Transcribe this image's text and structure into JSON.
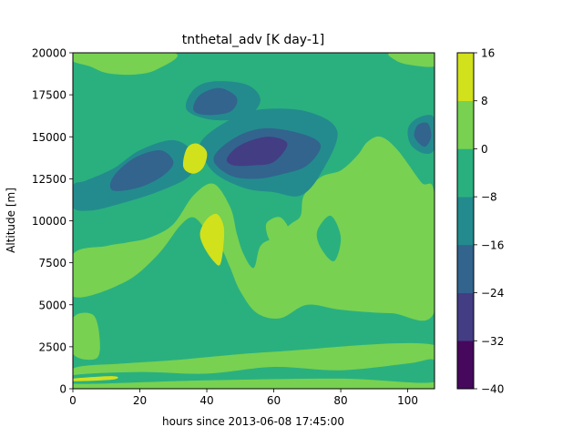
{
  "chart_data": {
    "type": "heatmap",
    "subtype": "filled-contour",
    "title": "tnthetal_adv [K day-1]",
    "xlabel": "hours since 2013-06-08 17:45:00",
    "ylabel": "Altitude [m]",
    "xlim": [
      0,
      108
    ],
    "ylim": [
      0,
      20000
    ],
    "xticks": [
      "0",
      "20",
      "40",
      "60",
      "80",
      "100"
    ],
    "xtick_values": [
      0,
      20,
      40,
      60,
      80,
      100
    ],
    "yticks": [
      "0",
      "2500",
      "5000",
      "7500",
      "10000",
      "12500",
      "15000",
      "17500",
      "20000"
    ],
    "ytick_values": [
      0,
      2500,
      5000,
      7500,
      10000,
      12500,
      15000,
      17500,
      20000
    ],
    "colormap": "viridis",
    "levels": [
      -40,
      -32,
      -24,
      -16,
      -8,
      0,
      8,
      16
    ],
    "colorbar_ticks": [
      "16",
      "8",
      "0",
      "−8",
      "−16",
      "−24",
      "−32",
      "−40"
    ],
    "level_colors": [
      "#46085c",
      "#433d84",
      "#32648e",
      "#238b8d",
      "#2ab07f",
      "#78d151",
      "#d1e11c"
    ],
    "background_band": "-8..0",
    "regions": [
      {
        "band": "0..8",
        "points": [
          [
            0,
            0
          ],
          [
            108,
            0
          ],
          [
            108,
            2600
          ],
          [
            60,
            2200
          ],
          [
            30,
            1700
          ],
          [
            15,
            1500
          ],
          [
            0,
            1200
          ]
        ]
      },
      {
        "band": "-8..0",
        "points": [
          [
            0,
            800
          ],
          [
            20,
            1000
          ],
          [
            40,
            900
          ],
          [
            60,
            1300
          ],
          [
            80,
            1100
          ],
          [
            100,
            1500
          ],
          [
            108,
            1700
          ],
          [
            108,
            400
          ],
          [
            80,
            600
          ],
          [
            40,
            500
          ],
          [
            0,
            300
          ]
        ]
      },
      {
        "band": "8..16",
        "points": [
          [
            0,
            600
          ],
          [
            12,
            750
          ],
          [
            12,
            550
          ],
          [
            0,
            450
          ]
        ]
      },
      {
        "band": "0..8",
        "points": [
          [
            0,
            4200
          ],
          [
            6,
            4400
          ],
          [
            8,
            3000
          ],
          [
            7,
            1800
          ],
          [
            0,
            2100
          ]
        ]
      },
      {
        "band": "0..8",
        "points": [
          [
            0,
            5500
          ],
          [
            15,
            6300
          ],
          [
            25,
            7900
          ],
          [
            32,
            9700
          ],
          [
            36,
            10200
          ],
          [
            40,
            9400
          ],
          [
            44,
            8500
          ],
          [
            47,
            7200
          ],
          [
            50,
            5800
          ],
          [
            55,
            4500
          ],
          [
            62,
            4200
          ],
          [
            70,
            5000
          ],
          [
            80,
            4700
          ],
          [
            95,
            4500
          ],
          [
            108,
            4600
          ],
          [
            108,
            11500
          ],
          [
            104,
            12300
          ],
          [
            97,
            14200
          ],
          [
            92,
            15000
          ],
          [
            88,
            14700
          ],
          [
            85,
            13900
          ],
          [
            80,
            13000
          ],
          [
            74,
            12600
          ],
          [
            69,
            11500
          ],
          [
            68,
            10300
          ],
          [
            65,
            9800
          ],
          [
            60,
            9000
          ],
          [
            56,
            8500
          ],
          [
            54,
            7200
          ],
          [
            51,
            8000
          ],
          [
            49,
            9200
          ],
          [
            47,
            10800
          ],
          [
            42,
            12200
          ],
          [
            36,
            11500
          ],
          [
            30,
            9800
          ],
          [
            23,
            9000
          ],
          [
            16,
            8700
          ],
          [
            10,
            8500
          ],
          [
            0,
            8000
          ]
        ]
      },
      {
        "band": "0..8",
        "points": [
          [
            58,
            9900
          ],
          [
            62,
            10200
          ],
          [
            65,
            9200
          ],
          [
            64,
            7800
          ],
          [
            62,
            7000
          ],
          [
            60,
            8300
          ],
          [
            58,
            9200
          ]
        ]
      },
      {
        "band": "0..8",
        "points": [
          [
            0,
            20000
          ],
          [
            30,
            20000
          ],
          [
            25,
            19000
          ],
          [
            18,
            18700
          ],
          [
            10,
            18800
          ],
          [
            5,
            19200
          ],
          [
            0,
            19500
          ]
        ]
      },
      {
        "band": "0..8",
        "points": [
          [
            95,
            20000
          ],
          [
            108,
            20000
          ],
          [
            108,
            19200
          ],
          [
            100,
            19300
          ],
          [
            96,
            19600
          ]
        ]
      },
      {
        "band": "-8..0",
        "points": [
          [
            73,
            9400
          ],
          [
            77,
            10300
          ],
          [
            80,
            9000
          ],
          [
            78,
            7600
          ],
          [
            74,
            8400
          ]
        ]
      },
      {
        "band": "-16..-8",
        "points": [
          [
            0,
            10800
          ],
          [
            5,
            10600
          ],
          [
            12,
            10900
          ],
          [
            25,
            11700
          ],
          [
            35,
            12700
          ],
          [
            36,
            14000
          ],
          [
            30,
            14800
          ],
          [
            20,
            14200
          ],
          [
            12,
            13100
          ],
          [
            4,
            12400
          ],
          [
            0,
            12100
          ]
        ]
      },
      {
        "band": "-24..-16",
        "points": [
          [
            12,
            11800
          ],
          [
            20,
            12000
          ],
          [
            27,
            12700
          ],
          [
            30,
            13500
          ],
          [
            26,
            14200
          ],
          [
            18,
            13700
          ],
          [
            12,
            12600
          ]
        ]
      },
      {
        "band": "-16..-8",
        "points": [
          [
            38,
            14600
          ],
          [
            45,
            15800
          ],
          [
            55,
            16600
          ],
          [
            70,
            16500
          ],
          [
            79,
            15300
          ],
          [
            74,
            12800
          ],
          [
            68,
            11500
          ],
          [
            60,
            11700
          ],
          [
            52,
            11900
          ],
          [
            44,
            12600
          ],
          [
            40,
            13400
          ]
        ]
      },
      {
        "band": "-24..-16",
        "points": [
          [
            42,
            13700
          ],
          [
            48,
            14900
          ],
          [
            57,
            15500
          ],
          [
            68,
            15200
          ],
          [
            74,
            14500
          ],
          [
            70,
            13300
          ],
          [
            63,
            12800
          ],
          [
            55,
            12500
          ],
          [
            47,
            12700
          ]
        ]
      },
      {
        "band": "-32..-24",
        "points": [
          [
            46,
            13700
          ],
          [
            50,
            14500
          ],
          [
            58,
            15000
          ],
          [
            64,
            14600
          ],
          [
            60,
            13500
          ],
          [
            54,
            13300
          ],
          [
            48,
            13300
          ]
        ]
      },
      {
        "band": "-16..-8",
        "points": [
          [
            34,
            16600
          ],
          [
            36,
            17800
          ],
          [
            42,
            18300
          ],
          [
            52,
            18100
          ],
          [
            56,
            17200
          ],
          [
            52,
            16200
          ],
          [
            42,
            16000
          ]
        ]
      },
      {
        "band": "-24..-16",
        "points": [
          [
            36,
            16600
          ],
          [
            38,
            17500
          ],
          [
            44,
            17900
          ],
          [
            49,
            17300
          ],
          [
            47,
            16500
          ],
          [
            40,
            16300
          ]
        ]
      },
      {
        "band": "-16..-8",
        "points": [
          [
            100,
            15400
          ],
          [
            102,
            16000
          ],
          [
            106,
            16300
          ],
          [
            108,
            16000
          ],
          [
            108,
            14300
          ],
          [
            105,
            14000
          ],
          [
            101,
            14500
          ]
        ]
      },
      {
        "band": "-24..-16",
        "points": [
          [
            102,
            15000
          ],
          [
            103,
            15700
          ],
          [
            106,
            15800
          ],
          [
            107,
            15000
          ],
          [
            105,
            14400
          ]
        ]
      },
      {
        "band": "8..16",
        "points": [
          [
            33,
            13200
          ],
          [
            34,
            14300
          ],
          [
            37,
            14600
          ],
          [
            40,
            14100
          ],
          [
            39,
            13200
          ],
          [
            36,
            12800
          ]
        ]
      },
      {
        "band": "8..16",
        "points": [
          [
            38,
            9300
          ],
          [
            40,
            10100
          ],
          [
            43,
            10400
          ],
          [
            45,
            9700
          ],
          [
            45,
            8600
          ],
          [
            44,
            7400
          ],
          [
            42,
            7600
          ],
          [
            39,
            8500
          ]
        ]
      }
    ]
  }
}
